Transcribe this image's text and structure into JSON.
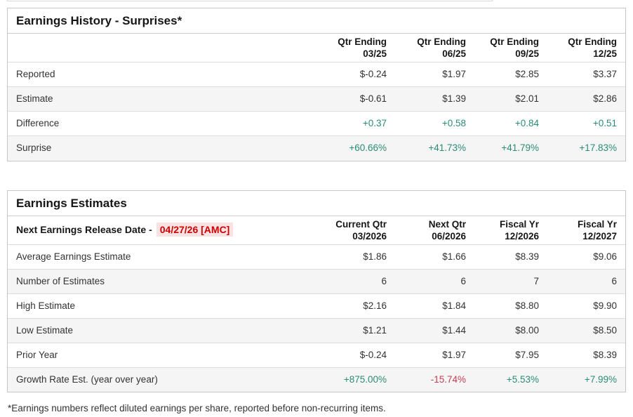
{
  "colors": {
    "positive_green": "#2a8c75",
    "negative_red": "#c43c50",
    "alert_red": "#cc0000",
    "alert_red_bg": "#fbe2e2",
    "row_alt_bg": "#f5f5f5"
  },
  "earnings_history": {
    "title": "Earnings History - Surprises*",
    "columns": [
      {
        "line1": "Qtr Ending",
        "line2": "03/25"
      },
      {
        "line1": "Qtr Ending",
        "line2": "06/25"
      },
      {
        "line1": "Qtr Ending",
        "line2": "09/25"
      },
      {
        "line1": "Qtr Ending",
        "line2": "12/25"
      }
    ],
    "rows": [
      {
        "label": "Reported",
        "values": [
          "$-0.24",
          "$1.97",
          "$2.85",
          "$3.37"
        ]
      },
      {
        "label": "Estimate",
        "values": [
          "$-0.61",
          "$1.39",
          "$2.01",
          "$2.86"
        ]
      },
      {
        "label": "Difference",
        "values": [
          "+0.37",
          "+0.58",
          "+0.84",
          "+0.51"
        ]
      },
      {
        "label": "Surprise",
        "values": [
          "+60.66%",
          "+41.73%",
          "+41.79%",
          "+17.83%"
        ]
      }
    ]
  },
  "earnings_estimates": {
    "title": "Earnings Estimates",
    "release_label": "Next Earnings Release Date -",
    "release_date": "04/27/26 [AMC]",
    "columns": [
      {
        "line1": "Current Qtr",
        "line2": "03/2026"
      },
      {
        "line1": "Next Qtr",
        "line2": "06/2026"
      },
      {
        "line1": "Fiscal Yr",
        "line2": "12/2026"
      },
      {
        "line1": "Fiscal Yr",
        "line2": "12/2027"
      }
    ],
    "rows": [
      {
        "label": "Average Earnings Estimate",
        "values": [
          "$1.86",
          "$1.66",
          "$8.39",
          "$9.06"
        ]
      },
      {
        "label": "Number of Estimates",
        "values": [
          "6",
          "6",
          "7",
          "6"
        ]
      },
      {
        "label": "High Estimate",
        "values": [
          "$2.16",
          "$1.84",
          "$8.80",
          "$9.90"
        ]
      },
      {
        "label": "Low Estimate",
        "values": [
          "$1.21",
          "$1.44",
          "$8.00",
          "$8.50"
        ]
      },
      {
        "label": "Prior Year",
        "values": [
          "$-0.24",
          "$1.97",
          "$7.95",
          "$8.39"
        ]
      },
      {
        "label": "Growth Rate Est. (year over year)",
        "values": [
          "+875.00%",
          "-15.74%",
          "+5.53%",
          "+7.99%"
        ]
      }
    ]
  },
  "footnote": "*Earnings numbers reflect diluted earnings per share, reported before non-recurring items."
}
